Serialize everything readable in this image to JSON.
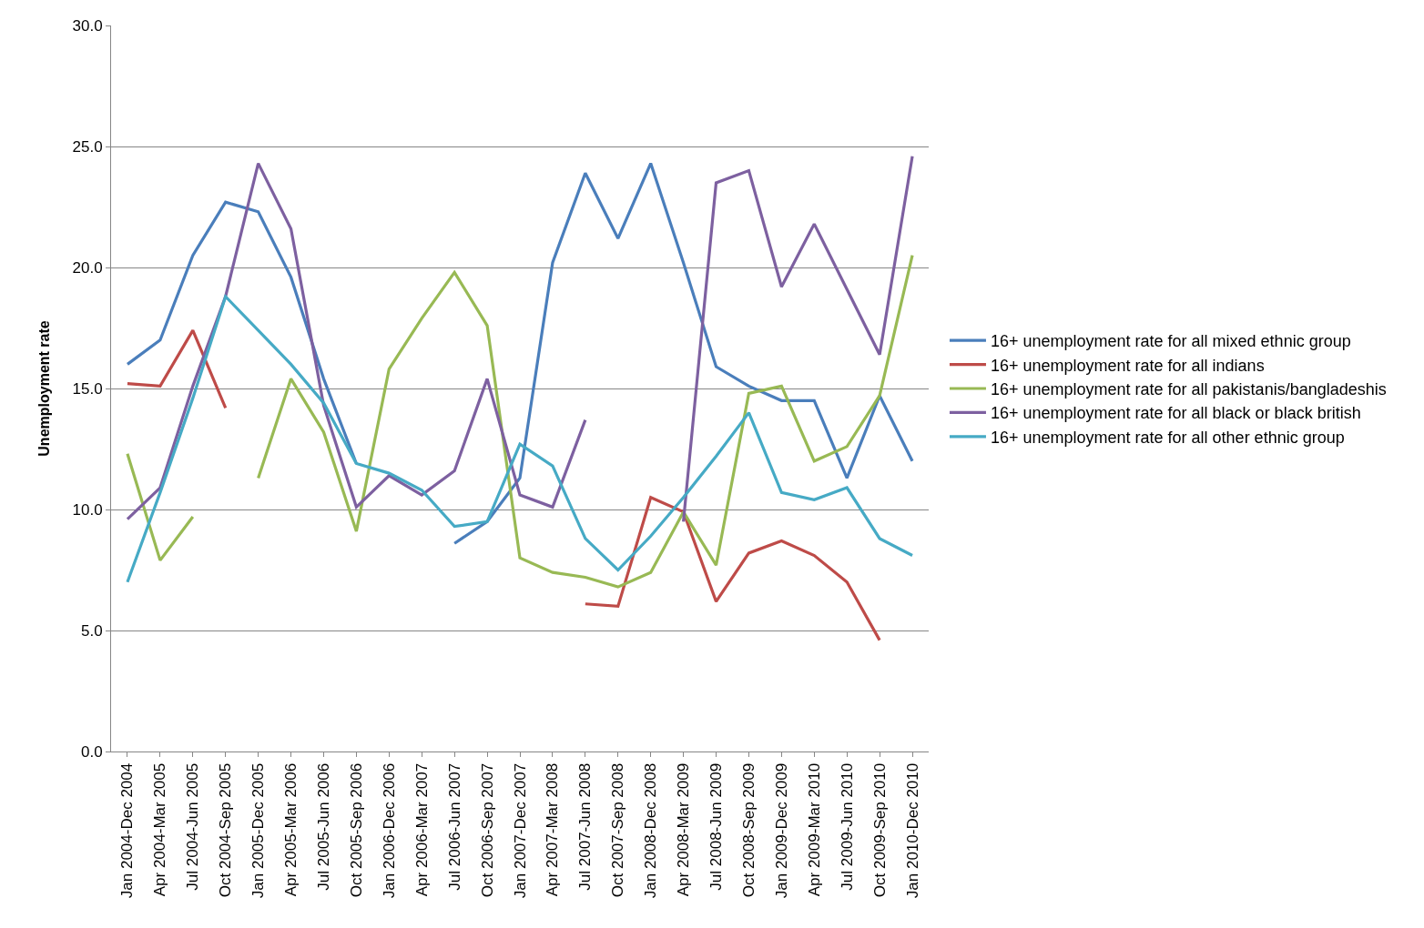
{
  "chart_data": {
    "type": "line",
    "ylabel": "Unemployment rate",
    "categories": [
      "Jan 2004-Dec 2004",
      "Apr 2004-Mar 2005",
      "Jul 2004-Jun 2005",
      "Oct 2004-Sep 2005",
      "Jan 2005-Dec 2005",
      "Apr 2005-Mar 2006",
      "Jul 2005-Jun 2006",
      "Oct 2005-Sep 2006",
      "Jan 2006-Dec 2006",
      "Apr 2006-Mar 2007",
      "Jul 2006-Jun 2007",
      "Oct 2006-Sep 2007",
      "Jan 2007-Dec 2007",
      "Apr 2007-Mar 2008",
      "Jul 2007-Jun 2008",
      "Oct 2007-Sep 2008",
      "Jan 2008-Dec 2008",
      "Apr 2008-Mar 2009",
      "Jul 2008-Jun 2009",
      "Oct 2008-Sep 2009",
      "Jan 2009-Dec 2009",
      "Apr 2009-Mar 2010",
      "Jul 2009-Jun 2010",
      "Oct 2009-Sep 2010",
      "Jan 2010-Dec 2010"
    ],
    "series": [
      {
        "name": "16+ unemployment rate for all mixed ethnic group",
        "color": "#4a7ebb",
        "values": [
          16.0,
          17.0,
          20.5,
          22.7,
          22.3,
          19.6,
          15.4,
          11.9,
          null,
          null,
          8.6,
          9.5,
          11.3,
          20.2,
          23.9,
          21.2,
          24.3,
          20.2,
          15.9,
          15.1,
          14.5,
          14.5,
          11.3,
          14.7,
          12.0
        ]
      },
      {
        "name": "16+ unemployment rate for all indians",
        "color": "#be4b48",
        "values": [
          15.2,
          15.1,
          17.4,
          14.2,
          null,
          null,
          null,
          null,
          null,
          null,
          null,
          null,
          null,
          null,
          6.1,
          6.0,
          10.5,
          9.9,
          6.2,
          8.2,
          8.7,
          8.1,
          7.0,
          4.6,
          null
        ]
      },
      {
        "name": "16+ unemployment rate for all pakistanis/bangladeshis",
        "color": "#98b954",
        "values": [
          12.3,
          7.9,
          9.7,
          null,
          11.3,
          15.4,
          13.2,
          9.1,
          15.8,
          17.9,
          19.8,
          17.6,
          8.0,
          7.4,
          7.2,
          6.8,
          7.4,
          9.9,
          7.7,
          14.8,
          15.1,
          12.0,
          12.6,
          14.7,
          20.5
        ]
      },
      {
        "name": "16+ unemployment rate for all black or black british",
        "color": "#7d60a0",
        "values": [
          9.6,
          10.9,
          15.1,
          18.8,
          24.3,
          21.6,
          14.3,
          10.1,
          11.4,
          10.6,
          11.6,
          15.4,
          10.6,
          10.1,
          13.7,
          null,
          null,
          9.5,
          23.5,
          24.0,
          19.2,
          21.8,
          19.1,
          16.4,
          24.6
        ]
      },
      {
        "name": "16+ unemployment rate for all other ethnic group",
        "color": "#46aac5",
        "values": [
          7.0,
          10.7,
          14.6,
          18.8,
          17.4,
          16.0,
          14.4,
          11.9,
          11.5,
          10.8,
          9.3,
          9.5,
          12.7,
          11.8,
          8.8,
          7.5,
          8.9,
          10.5,
          12.2,
          14.0,
          10.7,
          10.4,
          10.9,
          8.8,
          8.1
        ]
      }
    ],
    "ylim": [
      0,
      30
    ],
    "yticks": [
      {
        "value": 0,
        "label": "0.0"
      },
      {
        "value": 5,
        "label": "5.0"
      },
      {
        "value": 10,
        "label": "10.0"
      },
      {
        "value": 15,
        "label": "15.0"
      },
      {
        "value": 20,
        "label": "20.0"
      },
      {
        "value": 25,
        "label": "25.0"
      },
      {
        "value": 30,
        "label": "30.0"
      }
    ],
    "grid": "y",
    "legend": "right",
    "marker": "none",
    "line_style": "solid"
  }
}
